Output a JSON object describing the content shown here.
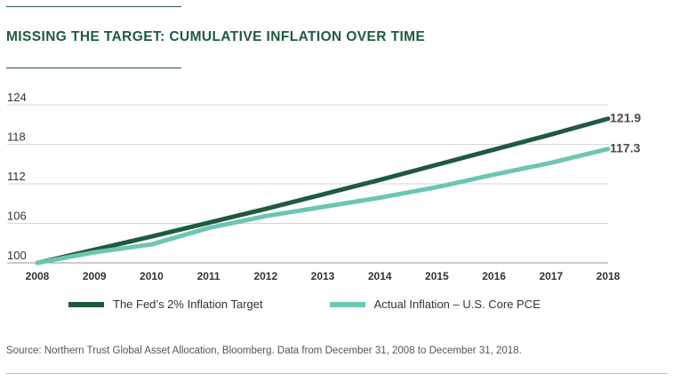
{
  "title": "MISSING THE TARGET: CUMULATIVE INFLATION OVER TIME",
  "source": "Source: Northern Trust Global Asset Allocation, Bloomberg. Data from December 31, 2008 to December 31, 2018.",
  "colors": {
    "target": "#1f5a3e",
    "actual": "#6cc6b1",
    "grid": "#d6d6d6",
    "title": "#1f5a3e"
  },
  "chart_data": {
    "type": "line",
    "x": [
      2008,
      2009,
      2010,
      2011,
      2012,
      2013,
      2014,
      2015,
      2016,
      2017,
      2018
    ],
    "xticks": [
      "2008",
      "2009",
      "2010",
      "2011",
      "2012",
      "2013",
      "2014",
      "2015",
      "2016",
      "2017",
      "2018"
    ],
    "yticks": [
      100,
      106,
      112,
      118,
      124
    ],
    "ylim": [
      100,
      124
    ],
    "xlim": [
      2008,
      2018
    ],
    "grid": true,
    "legend_position": "bottom",
    "series": [
      {
        "name": "The Fed’s 2% Inflation Target",
        "values": [
          100,
          102.0,
          104.0,
          106.1,
          108.2,
          110.4,
          112.6,
          114.9,
          117.2,
          119.5,
          121.9
        ],
        "end_label": "121.9"
      },
      {
        "name": "Actual Inflation – U.S. Core PCE",
        "values": [
          100,
          101.6,
          102.8,
          105.3,
          107.1,
          108.5,
          109.9,
          111.5,
          113.4,
          115.2,
          117.3
        ],
        "end_label": "117.3"
      }
    ]
  }
}
